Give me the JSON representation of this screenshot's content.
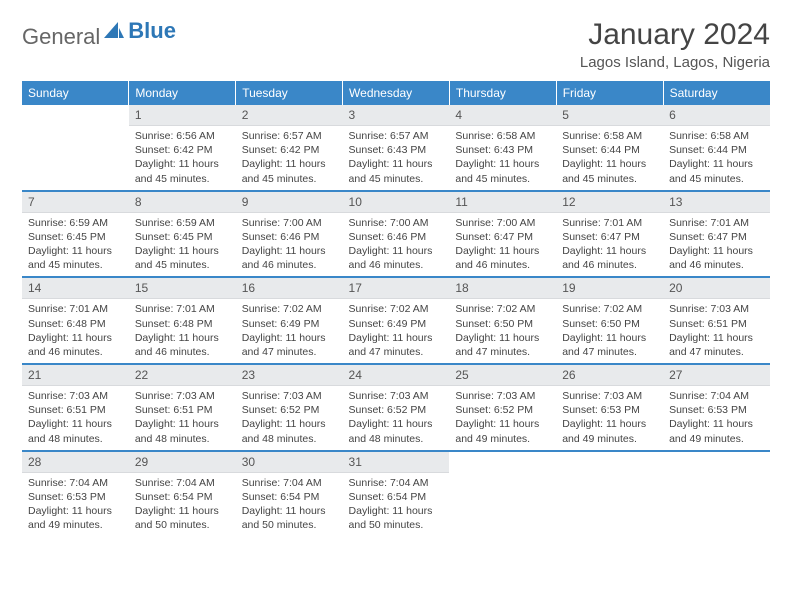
{
  "brand": {
    "general": "General",
    "blue": "Blue"
  },
  "title": "January 2024",
  "location": "Lagos Island, Lagos, Nigeria",
  "header_bg": "#3a87c8",
  "header_text": "#ffffff",
  "daynum_bg": "#e8eaec",
  "accent": "#3a87c8",
  "weekdays": [
    "Sunday",
    "Monday",
    "Tuesday",
    "Wednesday",
    "Thursday",
    "Friday",
    "Saturday"
  ],
  "weeks": [
    [
      null,
      {
        "n": "1",
        "sunrise": "6:56 AM",
        "sunset": "6:42 PM",
        "daylight": "11 hours and 45 minutes."
      },
      {
        "n": "2",
        "sunrise": "6:57 AM",
        "sunset": "6:42 PM",
        "daylight": "11 hours and 45 minutes."
      },
      {
        "n": "3",
        "sunrise": "6:57 AM",
        "sunset": "6:43 PM",
        "daylight": "11 hours and 45 minutes."
      },
      {
        "n": "4",
        "sunrise": "6:58 AM",
        "sunset": "6:43 PM",
        "daylight": "11 hours and 45 minutes."
      },
      {
        "n": "5",
        "sunrise": "6:58 AM",
        "sunset": "6:44 PM",
        "daylight": "11 hours and 45 minutes."
      },
      {
        "n": "6",
        "sunrise": "6:58 AM",
        "sunset": "6:44 PM",
        "daylight": "11 hours and 45 minutes."
      }
    ],
    [
      {
        "n": "7",
        "sunrise": "6:59 AM",
        "sunset": "6:45 PM",
        "daylight": "11 hours and 45 minutes."
      },
      {
        "n": "8",
        "sunrise": "6:59 AM",
        "sunset": "6:45 PM",
        "daylight": "11 hours and 45 minutes."
      },
      {
        "n": "9",
        "sunrise": "7:00 AM",
        "sunset": "6:46 PM",
        "daylight": "11 hours and 46 minutes."
      },
      {
        "n": "10",
        "sunrise": "7:00 AM",
        "sunset": "6:46 PM",
        "daylight": "11 hours and 46 minutes."
      },
      {
        "n": "11",
        "sunrise": "7:00 AM",
        "sunset": "6:47 PM",
        "daylight": "11 hours and 46 minutes."
      },
      {
        "n": "12",
        "sunrise": "7:01 AM",
        "sunset": "6:47 PM",
        "daylight": "11 hours and 46 minutes."
      },
      {
        "n": "13",
        "sunrise": "7:01 AM",
        "sunset": "6:47 PM",
        "daylight": "11 hours and 46 minutes."
      }
    ],
    [
      {
        "n": "14",
        "sunrise": "7:01 AM",
        "sunset": "6:48 PM",
        "daylight": "11 hours and 46 minutes."
      },
      {
        "n": "15",
        "sunrise": "7:01 AM",
        "sunset": "6:48 PM",
        "daylight": "11 hours and 46 minutes."
      },
      {
        "n": "16",
        "sunrise": "7:02 AM",
        "sunset": "6:49 PM",
        "daylight": "11 hours and 47 minutes."
      },
      {
        "n": "17",
        "sunrise": "7:02 AM",
        "sunset": "6:49 PM",
        "daylight": "11 hours and 47 minutes."
      },
      {
        "n": "18",
        "sunrise": "7:02 AM",
        "sunset": "6:50 PM",
        "daylight": "11 hours and 47 minutes."
      },
      {
        "n": "19",
        "sunrise": "7:02 AM",
        "sunset": "6:50 PM",
        "daylight": "11 hours and 47 minutes."
      },
      {
        "n": "20",
        "sunrise": "7:03 AM",
        "sunset": "6:51 PM",
        "daylight": "11 hours and 47 minutes."
      }
    ],
    [
      {
        "n": "21",
        "sunrise": "7:03 AM",
        "sunset": "6:51 PM",
        "daylight": "11 hours and 48 minutes."
      },
      {
        "n": "22",
        "sunrise": "7:03 AM",
        "sunset": "6:51 PM",
        "daylight": "11 hours and 48 minutes."
      },
      {
        "n": "23",
        "sunrise": "7:03 AM",
        "sunset": "6:52 PM",
        "daylight": "11 hours and 48 minutes."
      },
      {
        "n": "24",
        "sunrise": "7:03 AM",
        "sunset": "6:52 PM",
        "daylight": "11 hours and 48 minutes."
      },
      {
        "n": "25",
        "sunrise": "7:03 AM",
        "sunset": "6:52 PM",
        "daylight": "11 hours and 49 minutes."
      },
      {
        "n": "26",
        "sunrise": "7:03 AM",
        "sunset": "6:53 PM",
        "daylight": "11 hours and 49 minutes."
      },
      {
        "n": "27",
        "sunrise": "7:04 AM",
        "sunset": "6:53 PM",
        "daylight": "11 hours and 49 minutes."
      }
    ],
    [
      {
        "n": "28",
        "sunrise": "7:04 AM",
        "sunset": "6:53 PM",
        "daylight": "11 hours and 49 minutes."
      },
      {
        "n": "29",
        "sunrise": "7:04 AM",
        "sunset": "6:54 PM",
        "daylight": "11 hours and 50 minutes."
      },
      {
        "n": "30",
        "sunrise": "7:04 AM",
        "sunset": "6:54 PM",
        "daylight": "11 hours and 50 minutes."
      },
      {
        "n": "31",
        "sunrise": "7:04 AM",
        "sunset": "6:54 PM",
        "daylight": "11 hours and 50 minutes."
      },
      null,
      null,
      null
    ]
  ],
  "labels": {
    "sunrise": "Sunrise:",
    "sunset": "Sunset:",
    "daylight": "Daylight:"
  }
}
